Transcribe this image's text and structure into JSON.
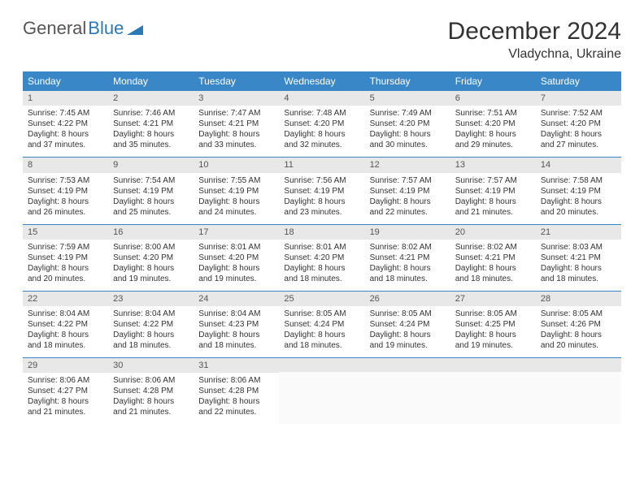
{
  "logo": {
    "text_grey": "General",
    "text_blue": "Blue"
  },
  "title": "December 2024",
  "location": "Vladychna, Ukraine",
  "colors": {
    "header_bg": "#3a87c7",
    "header_text": "#ffffff",
    "daynum_bg": "#e8e8e8",
    "rule": "#3a87c7",
    "body_text": "#333333"
  },
  "dayNames": [
    "Sunday",
    "Monday",
    "Tuesday",
    "Wednesday",
    "Thursday",
    "Friday",
    "Saturday"
  ],
  "days": [
    {
      "n": 1,
      "sr": "7:45 AM",
      "ss": "4:22 PM",
      "dl": "8 hours and 37 minutes."
    },
    {
      "n": 2,
      "sr": "7:46 AM",
      "ss": "4:21 PM",
      "dl": "8 hours and 35 minutes."
    },
    {
      "n": 3,
      "sr": "7:47 AM",
      "ss": "4:21 PM",
      "dl": "8 hours and 33 minutes."
    },
    {
      "n": 4,
      "sr": "7:48 AM",
      "ss": "4:20 PM",
      "dl": "8 hours and 32 minutes."
    },
    {
      "n": 5,
      "sr": "7:49 AM",
      "ss": "4:20 PM",
      "dl": "8 hours and 30 minutes."
    },
    {
      "n": 6,
      "sr": "7:51 AM",
      "ss": "4:20 PM",
      "dl": "8 hours and 29 minutes."
    },
    {
      "n": 7,
      "sr": "7:52 AM",
      "ss": "4:20 PM",
      "dl": "8 hours and 27 minutes."
    },
    {
      "n": 8,
      "sr": "7:53 AM",
      "ss": "4:19 PM",
      "dl": "8 hours and 26 minutes."
    },
    {
      "n": 9,
      "sr": "7:54 AM",
      "ss": "4:19 PM",
      "dl": "8 hours and 25 minutes."
    },
    {
      "n": 10,
      "sr": "7:55 AM",
      "ss": "4:19 PM",
      "dl": "8 hours and 24 minutes."
    },
    {
      "n": 11,
      "sr": "7:56 AM",
      "ss": "4:19 PM",
      "dl": "8 hours and 23 minutes."
    },
    {
      "n": 12,
      "sr": "7:57 AM",
      "ss": "4:19 PM",
      "dl": "8 hours and 22 minutes."
    },
    {
      "n": 13,
      "sr": "7:57 AM",
      "ss": "4:19 PM",
      "dl": "8 hours and 21 minutes."
    },
    {
      "n": 14,
      "sr": "7:58 AM",
      "ss": "4:19 PM",
      "dl": "8 hours and 20 minutes."
    },
    {
      "n": 15,
      "sr": "7:59 AM",
      "ss": "4:19 PM",
      "dl": "8 hours and 20 minutes."
    },
    {
      "n": 16,
      "sr": "8:00 AM",
      "ss": "4:20 PM",
      "dl": "8 hours and 19 minutes."
    },
    {
      "n": 17,
      "sr": "8:01 AM",
      "ss": "4:20 PM",
      "dl": "8 hours and 19 minutes."
    },
    {
      "n": 18,
      "sr": "8:01 AM",
      "ss": "4:20 PM",
      "dl": "8 hours and 18 minutes."
    },
    {
      "n": 19,
      "sr": "8:02 AM",
      "ss": "4:21 PM",
      "dl": "8 hours and 18 minutes."
    },
    {
      "n": 20,
      "sr": "8:02 AM",
      "ss": "4:21 PM",
      "dl": "8 hours and 18 minutes."
    },
    {
      "n": 21,
      "sr": "8:03 AM",
      "ss": "4:21 PM",
      "dl": "8 hours and 18 minutes."
    },
    {
      "n": 22,
      "sr": "8:04 AM",
      "ss": "4:22 PM",
      "dl": "8 hours and 18 minutes."
    },
    {
      "n": 23,
      "sr": "8:04 AM",
      "ss": "4:22 PM",
      "dl": "8 hours and 18 minutes."
    },
    {
      "n": 24,
      "sr": "8:04 AM",
      "ss": "4:23 PM",
      "dl": "8 hours and 18 minutes."
    },
    {
      "n": 25,
      "sr": "8:05 AM",
      "ss": "4:24 PM",
      "dl": "8 hours and 18 minutes."
    },
    {
      "n": 26,
      "sr": "8:05 AM",
      "ss": "4:24 PM",
      "dl": "8 hours and 19 minutes."
    },
    {
      "n": 27,
      "sr": "8:05 AM",
      "ss": "4:25 PM",
      "dl": "8 hours and 19 minutes."
    },
    {
      "n": 28,
      "sr": "8:05 AM",
      "ss": "4:26 PM",
      "dl": "8 hours and 20 minutes."
    },
    {
      "n": 29,
      "sr": "8:06 AM",
      "ss": "4:27 PM",
      "dl": "8 hours and 21 minutes."
    },
    {
      "n": 30,
      "sr": "8:06 AM",
      "ss": "4:28 PM",
      "dl": "8 hours and 21 minutes."
    },
    {
      "n": 31,
      "sr": "8:06 AM",
      "ss": "4:28 PM",
      "dl": "8 hours and 22 minutes."
    }
  ],
  "labels": {
    "sunrise_prefix": "Sunrise: ",
    "sunset_prefix": "Sunset: ",
    "daylight_prefix": "Daylight: "
  },
  "grid": {
    "first_weekday_index": 0,
    "total_cells": 35
  }
}
